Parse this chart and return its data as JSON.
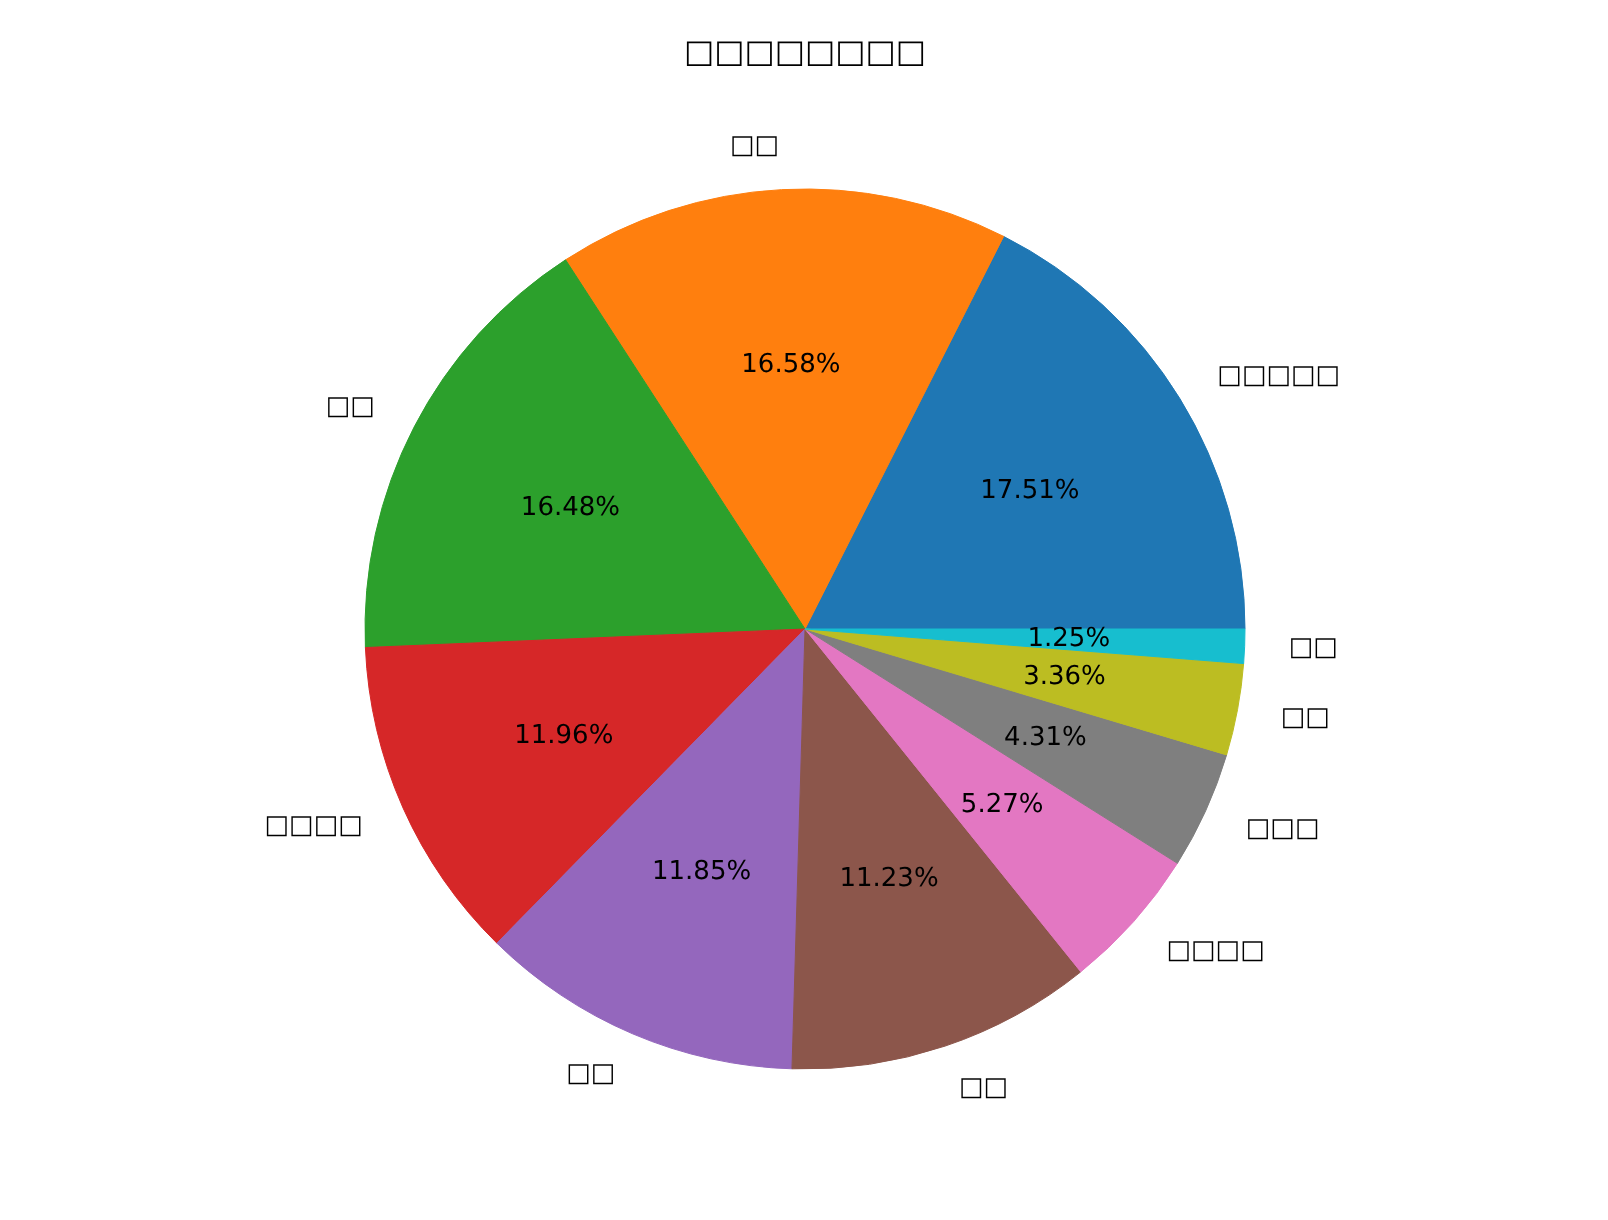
{
  "chart_data": {
    "type": "pie",
    "title": "□□□□□□□□",
    "categories": [
      "□□□□□",
      "□□",
      "□□",
      "□□□□",
      "□□",
      "□□",
      "□□□□",
      "□□□",
      "□□",
      "□□"
    ],
    "values": [
      17.51,
      16.58,
      16.48,
      11.96,
      11.85,
      11.23,
      5.27,
      4.31,
      3.36,
      1.25
    ],
    "value_labels": [
      "17.51%",
      "16.58%",
      "16.48%",
      "11.96%",
      "11.85%",
      "11.23%",
      "5.27%",
      "4.31%",
      "3.36%",
      "1.25%"
    ],
    "colors": [
      "#1f77b4",
      "#ff7f0e",
      "#2ca02c",
      "#d62728",
      "#9467bd",
      "#8c564b",
      "#e377c2",
      "#7f7f7f",
      "#bcbd22",
      "#17becf"
    ]
  }
}
